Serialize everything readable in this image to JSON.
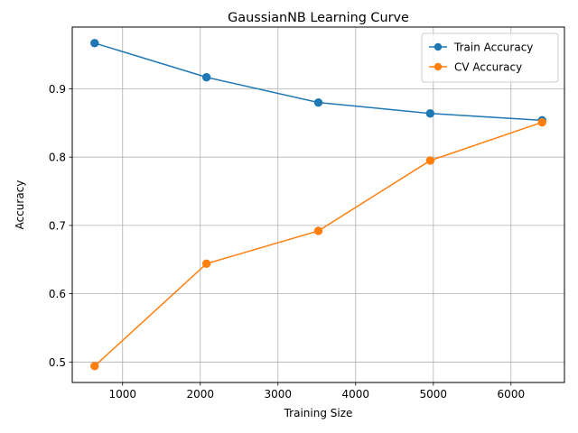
{
  "chart_data": {
    "type": "line",
    "title": "GaussianNB Learning Curve",
    "xlabel": "Training Size",
    "ylabel": "Accuracy",
    "x": [
      640,
      2080,
      3520,
      4960,
      6400
    ],
    "series": [
      {
        "name": "Train Accuracy",
        "color": "#1f77b4",
        "values": [
          0.967,
          0.917,
          0.88,
          0.864,
          0.854
        ]
      },
      {
        "name": "CV Accuracy",
        "color": "#ff7f0e",
        "values": [
          0.494,
          0.644,
          0.692,
          0.795,
          0.851
        ]
      }
    ],
    "xlim": [
      352,
      6688
    ],
    "ylim": [
      0.47,
      0.9905
    ],
    "xticks": [
      1000,
      2000,
      3000,
      4000,
      5000,
      6000
    ],
    "yticks": [
      0.5,
      0.6,
      0.7,
      0.8,
      0.9
    ],
    "xtick_labels": [
      "1000",
      "2000",
      "3000",
      "4000",
      "5000",
      "6000"
    ],
    "ytick_labels": [
      "0.5",
      "0.6",
      "0.7",
      "0.8",
      "0.9"
    ],
    "grid": true,
    "legend": "upper right",
    "marker": "circle"
  }
}
